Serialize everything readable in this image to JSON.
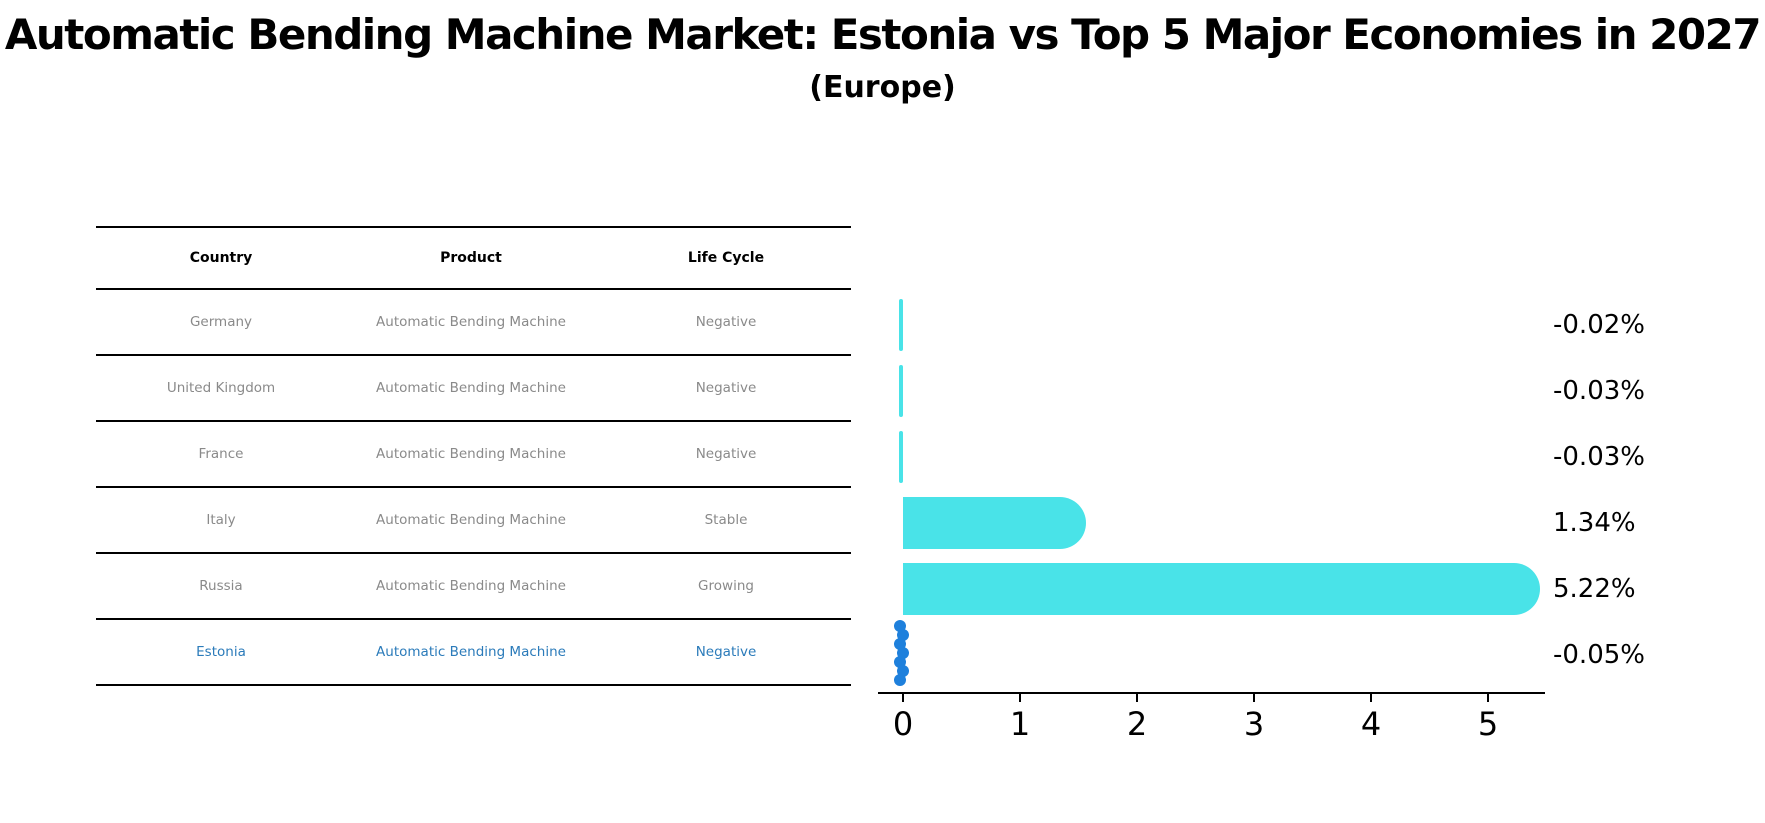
{
  "title": "Automatic Bending Machine Market: Estonia vs Top 5 Major Economies in 2027",
  "subtitle": "(Europe)",
  "table": {
    "headers": [
      "Country",
      "Product",
      "Life Cycle"
    ],
    "rows": [
      {
        "country": "Germany",
        "product": "Automatic Bending Machine",
        "life_cycle": "Negative"
      },
      {
        "country": "United Kingdom",
        "product": "Automatic Bending Machine",
        "life_cycle": "Negative"
      },
      {
        "country": "France",
        "product": "Automatic Bending Machine",
        "life_cycle": "Negative"
      },
      {
        "country": "Italy",
        "product": "Automatic Bending Machine",
        "life_cycle": "Stable"
      },
      {
        "country": "Russia",
        "product": "Automatic Bending Machine",
        "life_cycle": "Growing"
      },
      {
        "country": "Estonia",
        "product": "Automatic Bending Machine",
        "life_cycle": "Negative"
      }
    ]
  },
  "chart_data": {
    "type": "bar",
    "orientation": "horizontal",
    "categories": [
      "Germany",
      "United Kingdom",
      "France",
      "Italy",
      "Russia",
      "Estonia"
    ],
    "values": [
      -0.02,
      -0.03,
      -0.03,
      1.34,
      5.22,
      -0.05
    ],
    "value_labels": [
      "-0.02%",
      "-0.03%",
      "-0.03%",
      "1.34%",
      "5.22%",
      "-0.05%"
    ],
    "x_ticks": [
      "0",
      "1",
      "2",
      "3",
      "4",
      "5"
    ],
    "xlim": [
      -0.21,
      5.49
    ],
    "grid": false,
    "legend": "none",
    "dot_series_category": "Estonia",
    "colors": {
      "bar": "#49E3E8",
      "estonia_dots": "#1E80DC",
      "estonia_row_text": "#2B7BBA",
      "table_text": "#8A8A8A",
      "axis": "#000000"
    }
  }
}
